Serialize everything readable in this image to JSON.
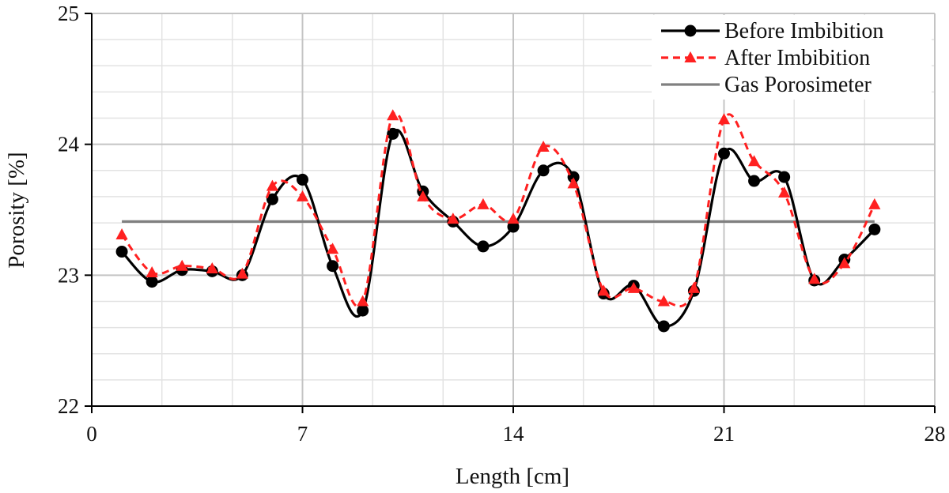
{
  "chart_data": {
    "type": "line",
    "title": "",
    "xlabel": "Length [cm]",
    "ylabel": "Porosity [%]",
    "xlim": [
      0,
      28
    ],
    "ylim": [
      22,
      25
    ],
    "xticks": [
      0,
      7,
      14,
      21,
      28
    ],
    "xtick_labels": [
      "0",
      "7",
      "14",
      "21",
      "28"
    ],
    "yticks": [
      22,
      23,
      24,
      25
    ],
    "ytick_labels": [
      "22",
      "23",
      "24",
      "25"
    ],
    "x_minor_gridlines": [
      2.33,
      4.67,
      9.33,
      11.67,
      16.33,
      18.67,
      23.33,
      25.67
    ],
    "y_minor_gridlines": [
      22.2,
      22.4,
      22.6,
      22.8,
      23.2,
      23.4,
      23.6,
      23.8,
      24.2,
      24.4,
      24.6,
      24.8
    ],
    "grid": true,
    "legend_position": "top-right",
    "series": [
      {
        "name": "Before Imbibition",
        "color": "#000000",
        "line": "solid",
        "marker": "circle",
        "x": [
          1,
          2,
          3,
          4,
          5,
          6,
          7,
          8,
          9,
          10,
          11,
          12,
          13,
          14,
          15,
          16,
          17,
          18,
          19,
          20,
          21,
          22,
          23,
          24,
          25,
          26
        ],
        "values": [
          23.18,
          22.95,
          23.04,
          23.03,
          23.0,
          23.58,
          23.73,
          23.07,
          22.73,
          24.08,
          23.64,
          23.41,
          23.22,
          23.37,
          23.8,
          23.75,
          22.86,
          22.92,
          22.61,
          22.88,
          23.93,
          23.72,
          23.75,
          22.96,
          23.12,
          23.35
        ]
      },
      {
        "name": "After Imbibition",
        "color": "#ff2020",
        "line": "dashed",
        "marker": "triangle",
        "x": [
          1,
          2,
          3,
          4,
          5,
          6,
          7,
          8,
          9,
          10,
          11,
          12,
          13,
          14,
          15,
          16,
          17,
          18,
          19,
          20,
          21,
          22,
          23,
          24,
          25,
          26
        ],
        "values": [
          23.31,
          23.02,
          23.07,
          23.05,
          23.01,
          23.68,
          23.6,
          23.2,
          22.8,
          24.22,
          23.6,
          23.43,
          23.54,
          23.43,
          23.98,
          23.7,
          22.88,
          22.9,
          22.8,
          22.9,
          24.19,
          23.87,
          23.63,
          22.97,
          23.09,
          23.54
        ]
      },
      {
        "name": "Gas Porosimeter",
        "color": "#808080",
        "line": "solid",
        "marker": "none",
        "x": [
          1,
          26
        ],
        "values": [
          23.41,
          23.41
        ]
      }
    ]
  }
}
